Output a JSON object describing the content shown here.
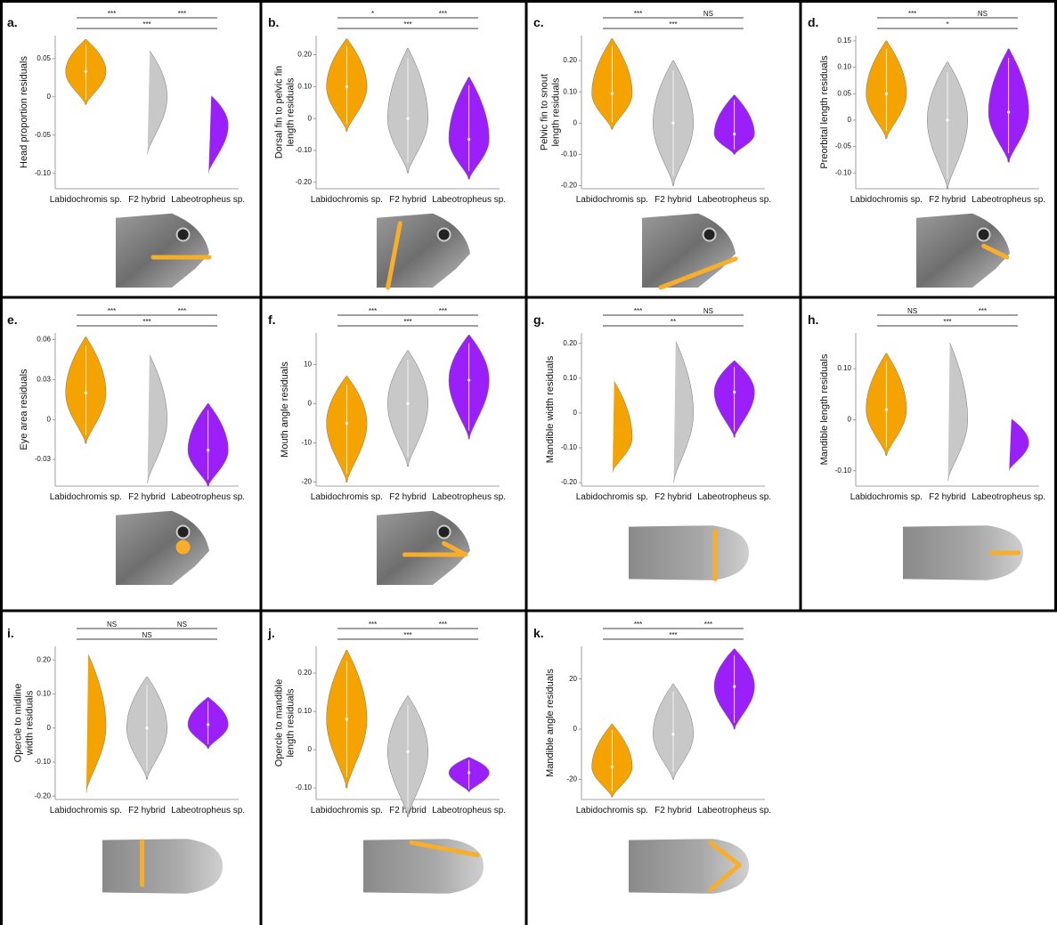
{
  "chart_data": [
    {
      "type": "violin",
      "panel": "a.",
      "ylabel": [
        "Head proportion residuals"
      ],
      "categories": [
        "Labidochromis sp.",
        "F2 hybrid",
        "Labeotropheus sp."
      ],
      "colors": [
        "#f5a300",
        "#c8c8c8",
        "#9b1ffa"
      ],
      "values": [
        0.033,
        0,
        -0.037
      ],
      "min": [
        -0.01,
        -0.075,
        -0.1
      ],
      "max": [
        0.075,
        0.065,
        0.005
      ],
      "ylim": [
        -0.12,
        0.08
      ],
      "yticks": [
        {
          "value": -0.1,
          "label": "-0.10"
        },
        -0.05,
        0,
        0.05
      ],
      "comparisons": [
        {
          "pair": [
            0,
            1
          ],
          "label": "***"
        },
        {
          "pair": [
            1,
            2
          ],
          "label": "***"
        },
        {
          "pair": [
            0,
            2
          ],
          "label": "***"
        }
      ]
    },
    {
      "type": "violin",
      "panel": "b.",
      "ylabel": [
        "Dorsal fin to pelvic fin",
        "length residuals"
      ],
      "categories": [
        "Labidochromis sp.",
        "F2 hybrid",
        "Labeotropheus sp."
      ],
      "colors": [
        "#f5a300",
        "#c8c8c8",
        "#9b1ffa"
      ],
      "values": [
        0.1,
        0,
        -0.065
      ],
      "min": [
        -0.04,
        -0.17,
        -0.19
      ],
      "max": [
        0.25,
        0.22,
        0.13
      ],
      "ylim": [
        -0.22,
        0.26
      ],
      "yticks": [
        {
          "value": -0.2,
          "label": "-0.20"
        },
        {
          "value": -0.1,
          "label": "-0.10"
        },
        0,
        {
          "value": 0.1,
          "label": "0.10"
        },
        {
          "value": 0.2,
          "label": "0.20"
        }
      ],
      "comparisons": [
        {
          "pair": [
            0,
            1
          ],
          "label": "*"
        },
        {
          "pair": [
            1,
            2
          ],
          "label": "***"
        },
        {
          "pair": [
            0,
            2
          ],
          "label": "***"
        }
      ]
    },
    {
      "type": "violin",
      "panel": "c.",
      "ylabel": [
        "Pelvic fin to snout",
        "length residuals"
      ],
      "categories": [
        "Labidochromis sp.",
        "F2 hybrid",
        "Labeotropheus sp."
      ],
      "colors": [
        "#f5a300",
        "#c8c8c8",
        "#9b1ffa"
      ],
      "values": [
        0.095,
        0,
        -0.035
      ],
      "min": [
        -0.02,
        -0.2,
        -0.1
      ],
      "max": [
        0.27,
        0.2,
        0.09
      ],
      "ylim": [
        -0.21,
        0.28
      ],
      "yticks": [
        {
          "value": -0.2,
          "label": "-0.20"
        },
        {
          "value": -0.1,
          "label": "-0.10"
        },
        0,
        {
          "value": 0.1,
          "label": "0.10"
        },
        {
          "value": 0.2,
          "label": "0.20"
        }
      ],
      "comparisons": [
        {
          "pair": [
            0,
            1
          ],
          "label": "***"
        },
        {
          "pair": [
            1,
            2
          ],
          "label": "NS"
        },
        {
          "pair": [
            0,
            2
          ],
          "label": "***"
        }
      ]
    },
    {
      "type": "violin",
      "panel": "d.",
      "ylabel": [
        "Preorbital length residuals"
      ],
      "categories": [
        "Labidochromis sp.",
        "F2 hybrid",
        "Labeotropheus sp."
      ],
      "colors": [
        "#f5a300",
        "#c8c8c8",
        "#9b1ffa"
      ],
      "values": [
        0.05,
        0,
        0.015
      ],
      "min": [
        -0.035,
        -0.13,
        -0.08
      ],
      "max": [
        0.15,
        0.11,
        0.135
      ],
      "ylim": [
        -0.13,
        0.16
      ],
      "yticks": [
        {
          "value": -0.1,
          "label": "-0.10"
        },
        -0.05,
        0,
        0.05,
        {
          "value": 0.1,
          "label": "0.10"
        },
        0.15
      ],
      "comparisons": [
        {
          "pair": [
            0,
            1
          ],
          "label": "***"
        },
        {
          "pair": [
            1,
            2
          ],
          "label": "NS"
        },
        {
          "pair": [
            0,
            2
          ],
          "label": "*"
        }
      ]
    },
    {
      "type": "violin",
      "panel": "e.",
      "ylabel": [
        "Eye area residuals"
      ],
      "categories": [
        "Labidochromis sp.",
        "F2 hybrid",
        "Labeotropheus sp."
      ],
      "colors": [
        "#f5a300",
        "#c8c8c8",
        "#9b1ffa"
      ],
      "values": [
        0.02,
        0,
        -0.023
      ],
      "min": [
        -0.018,
        -0.048,
        -0.05
      ],
      "max": [
        0.062,
        0.052,
        0.012
      ],
      "ylim": [
        -0.05,
        0.065
      ],
      "yticks": [
        -0.03,
        0,
        0.03,
        0.06
      ],
      "comparisons": [
        {
          "pair": [
            0,
            1
          ],
          "label": "***"
        },
        {
          "pair": [
            1,
            2
          ],
          "label": "***"
        },
        {
          "pair": [
            0,
            2
          ],
          "label": "***"
        }
      ]
    },
    {
      "type": "violin",
      "panel": "f.",
      "ylabel": [
        "Mouth angle residuals"
      ],
      "categories": [
        "Labidochromis sp.",
        "F2 hybrid",
        "Labeotropheus sp."
      ],
      "colors": [
        "#f5a300",
        "#c8c8c8",
        "#9b1ffa"
      ],
      "values": [
        -5,
        0,
        6
      ],
      "min": [
        -20,
        -16,
        -9
      ],
      "max": [
        7,
        13.5,
        17.5
      ],
      "ylim": [
        -21,
        18
      ],
      "yticks": [
        -20,
        -10,
        0,
        10
      ],
      "comparisons": [
        {
          "pair": [
            0,
            1
          ],
          "label": "***"
        },
        {
          "pair": [
            1,
            2
          ],
          "label": "***"
        },
        {
          "pair": [
            0,
            2
          ],
          "label": "***"
        }
      ]
    },
    {
      "type": "violin",
      "panel": "g.",
      "ylabel": [
        "Mandible width residuals"
      ],
      "categories": [
        "Labidochromis sp.",
        "F2 hybrid",
        "Labeotropheus sp."
      ],
      "colors": [
        "#f5a300",
        "#c8c8c8",
        "#9b1ffa"
      ],
      "values": [
        -0.07,
        0,
        0.06
      ],
      "min": [
        -0.17,
        -0.2,
        -0.07
      ],
      "max": [
        0.1,
        0.22,
        0.15
      ],
      "ylim": [
        -0.21,
        0.23
      ],
      "yticks": [
        {
          "value": -0.2,
          "label": "-0.20"
        },
        {
          "value": -0.1,
          "label": "-0.10"
        },
        0,
        {
          "value": 0.1,
          "label": "0.10"
        },
        {
          "value": 0.2,
          "label": "0.20"
        }
      ],
      "comparisons": [
        {
          "pair": [
            0,
            1
          ],
          "label": "***"
        },
        {
          "pair": [
            1,
            2
          ],
          "label": "NS"
        },
        {
          "pair": [
            0,
            2
          ],
          "label": "**"
        }
      ]
    },
    {
      "type": "violin",
      "panel": "h.",
      "ylabel": [
        "Mandible length residuals"
      ],
      "categories": [
        "Labidochromis sp.",
        "F2 hybrid",
        "Labeotropheus sp."
      ],
      "colors": [
        "#f5a300",
        "#c8c8c8",
        "#9b1ffa"
      ],
      "values": [
        0.02,
        0,
        -0.045
      ],
      "min": [
        -0.07,
        -0.12,
        -0.1
      ],
      "max": [
        0.13,
        0.16,
        0.005
      ],
      "ylim": [
        -0.13,
        0.17
      ],
      "yticks": [
        {
          "value": -0.1,
          "label": "-0.10"
        },
        0,
        {
          "value": 0.1,
          "label": "0.10"
        }
      ],
      "comparisons": [
        {
          "pair": [
            0,
            1
          ],
          "label": "NS"
        },
        {
          "pair": [
            1,
            2
          ],
          "label": "***"
        },
        {
          "pair": [
            0,
            2
          ],
          "label": "***"
        }
      ]
    },
    {
      "type": "violin",
      "panel": "i.",
      "ylabel": [
        "Opercle to midline",
        "width residuals"
      ],
      "categories": [
        "Labidochromis sp.",
        "F2 hybrid",
        "Labeotropheus sp."
      ],
      "colors": [
        "#f5a300",
        "#c8c8c8",
        "#9b1ffa"
      ],
      "values": [
        0.005,
        0,
        0.01
      ],
      "min": [
        -0.19,
        -0.15,
        -0.06
      ],
      "max": [
        0.23,
        0.15,
        0.09
      ],
      "ylim": [
        -0.21,
        0.24
      ],
      "yticks": [
        {
          "value": -0.2,
          "label": "-0.20"
        },
        {
          "value": -0.1,
          "label": "-0.10"
        },
        0,
        {
          "value": 0.1,
          "label": "0.10"
        },
        {
          "value": 0.2,
          "label": "0.20"
        }
      ],
      "comparisons": [
        {
          "pair": [
            0,
            1
          ],
          "label": "NS"
        },
        {
          "pair": [
            1,
            2
          ],
          "label": "NS"
        },
        {
          "pair": [
            0,
            2
          ],
          "label": "NS"
        }
      ]
    },
    {
      "type": "violin",
      "panel": "j.",
      "ylabel": [
        "Opercle to mandible",
        "length residuals"
      ],
      "categories": [
        "Labidochromis sp.",
        "F2 hybrid",
        "Labeotropheus sp."
      ],
      "colors": [
        "#f5a300",
        "#c8c8c8",
        "#9b1ffa"
      ],
      "values": [
        0.08,
        -0.005,
        -0.06
      ],
      "min": [
        -0.1,
        -0.175,
        -0.11
      ],
      "max": [
        0.26,
        0.14,
        -0.02
      ],
      "ylim": [
        -0.13,
        0.27
      ],
      "yticks": [
        {
          "value": -0.1,
          "label": "-0.10"
        },
        0,
        {
          "value": 0.1,
          "label": "0.10"
        },
        {
          "value": 0.2,
          "label": "0.20"
        }
      ],
      "comparisons": [
        {
          "pair": [
            0,
            1
          ],
          "label": "***"
        },
        {
          "pair": [
            1,
            2
          ],
          "label": "***"
        },
        {
          "pair": [
            0,
            2
          ],
          "label": "***"
        }
      ]
    },
    {
      "type": "violin",
      "panel": "k.",
      "ylabel": [
        "Mandible angle residuals"
      ],
      "categories": [
        "Labidochromis sp.",
        "F2 hybrid",
        "Labeotropheus sp."
      ],
      "colors": [
        "#f5a300",
        "#c8c8c8",
        "#9b1ffa"
      ],
      "values": [
        -15,
        -2,
        17
      ],
      "min": [
        -27,
        -20,
        0
      ],
      "max": [
        2,
        18,
        32
      ],
      "ylim": [
        -28,
        33
      ],
      "yticks": [
        -20,
        0,
        20
      ],
      "comparisons": [
        {
          "pair": [
            0,
            1
          ],
          "label": "***"
        },
        {
          "pair": [
            1,
            2
          ],
          "label": "***"
        },
        {
          "pair": [
            0,
            2
          ],
          "label": "***"
        }
      ]
    }
  ]
}
